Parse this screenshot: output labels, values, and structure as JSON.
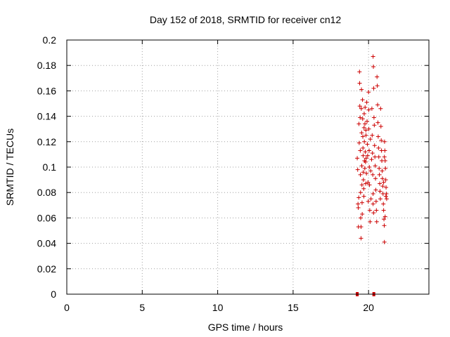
{
  "chart_data": {
    "type": "scatter",
    "title": "Day 152 of 2018, SRMTID for receiver cn12",
    "xlabel": "GPS time / hours",
    "ylabel": "SRMTID / TECUs",
    "xlim": [
      0,
      24
    ],
    "ylim": [
      0,
      0.2
    ],
    "xticks": [
      0,
      5,
      10,
      15,
      20
    ],
    "xtick_labels": [
      "0",
      "5",
      "10",
      "15",
      "20"
    ],
    "yticks": [
      0,
      0.02,
      0.04,
      0.06,
      0.08,
      0.1,
      0.12,
      0.14,
      0.16,
      0.18,
      0.2
    ],
    "ytick_labels": [
      "0",
      "0.02",
      "0.04",
      "0.06",
      "0.08",
      "0.1",
      "0.12",
      "0.14",
      "0.16",
      "0.18",
      "0.2"
    ],
    "grid": true,
    "marker": "+",
    "color": "#cc0000",
    "series": [
      {
        "name": "SRMTID",
        "points": [
          [
            19.25,
            0.107
          ],
          [
            19.28,
            0.098
          ],
          [
            19.3,
            0.071
          ],
          [
            19.32,
            0.068
          ],
          [
            19.33,
            0.053
          ],
          [
            19.35,
            0.076
          ],
          [
            19.36,
            0.134
          ],
          [
            19.38,
            0.119
          ],
          [
            19.4,
            0.175
          ],
          [
            19.41,
            0.166
          ],
          [
            19.42,
            0.148
          ],
          [
            19.44,
            0.139
          ],
          [
            19.45,
            0.113
          ],
          [
            19.46,
            0.094
          ],
          [
            19.47,
            0.08
          ],
          [
            19.48,
            0.06
          ],
          [
            19.5,
            0.053
          ],
          [
            19.5,
            0.044
          ],
          [
            19.52,
            0.146
          ],
          [
            19.53,
            0.161
          ],
          [
            19.54,
            0.127
          ],
          [
            19.55,
            0.101
          ],
          [
            19.56,
            0.086
          ],
          [
            19.57,
            0.072
          ],
          [
            19.58,
            0.063
          ],
          [
            19.6,
            0.153
          ],
          [
            19.61,
            0.138
          ],
          [
            19.62,
            0.124
          ],
          [
            19.63,
            0.115
          ],
          [
            19.64,
            0.109
          ],
          [
            19.65,
            0.096
          ],
          [
            19.66,
            0.09
          ],
          [
            19.68,
            0.083
          ],
          [
            19.69,
            0.077
          ],
          [
            19.7,
            0.131
          ],
          [
            19.71,
            0.142
          ],
          [
            19.72,
            0.12
          ],
          [
            19.73,
            0.105
          ],
          [
            19.75,
            0.099
          ],
          [
            19.76,
            0.134
          ],
          [
            19.77,
            0.147
          ],
          [
            19.78,
            0.112
          ],
          [
            19.8,
            0.104
          ],
          [
            19.81,
            0.087
          ],
          [
            19.82,
            0.129
          ],
          [
            19.83,
            0.125
          ],
          [
            19.84,
            0.107
          ],
          [
            19.86,
            0.095
          ],
          [
            19.88,
            0.151
          ],
          [
            19.9,
            0.136
          ],
          [
            19.92,
            0.118
          ],
          [
            19.94,
            0.109
          ],
          [
            19.96,
            0.088
          ],
          [
            19.98,
            0.073
          ],
          [
            20.0,
            0.159
          ],
          [
            20.01,
            0.145
          ],
          [
            20.02,
            0.13
          ],
          [
            20.04,
            0.113
          ],
          [
            20.05,
            0.1
          ],
          [
            20.06,
            0.086
          ],
          [
            20.08,
            0.066
          ],
          [
            20.1,
            0.057
          ],
          [
            20.12,
            0.122
          ],
          [
            20.14,
            0.097
          ],
          [
            20.16,
            0.075
          ],
          [
            20.2,
            0.106
          ],
          [
            20.22,
            0.146
          ],
          [
            20.24,
            0.125
          ],
          [
            20.26,
            0.111
          ],
          [
            20.28,
            0.094
          ],
          [
            20.3,
            0.079
          ],
          [
            20.3,
            0.187
          ],
          [
            20.32,
            0.179
          ],
          [
            20.34,
            0.162
          ],
          [
            20.36,
            0.139
          ],
          [
            20.38,
            0.133
          ],
          [
            20.4,
            0.117
          ],
          [
            20.42,
            0.108
          ],
          [
            20.44,
            0.101
          ],
          [
            20.46,
            0.091
          ],
          [
            20.48,
            0.082
          ],
          [
            20.5,
            0.073
          ],
          [
            20.52,
            0.066
          ],
          [
            20.54,
            0.057
          ],
          [
            20.3,
            0.071
          ],
          [
            20.33,
            0.064
          ],
          [
            20.56,
            0.171
          ],
          [
            20.58,
            0.164
          ],
          [
            20.6,
            0.149
          ],
          [
            20.62,
            0.135
          ],
          [
            20.64,
            0.124
          ],
          [
            20.66,
            0.115
          ],
          [
            20.68,
            0.108
          ],
          [
            20.7,
            0.099
          ],
          [
            20.72,
            0.094
          ],
          [
            20.74,
            0.087
          ],
          [
            20.76,
            0.081
          ],
          [
            20.78,
            0.075
          ],
          [
            20.8,
            0.146
          ],
          [
            20.82,
            0.132
          ],
          [
            20.84,
            0.121
          ],
          [
            20.86,
            0.113
          ],
          [
            20.88,
            0.105
          ],
          [
            20.9,
            0.097
          ],
          [
            20.92,
            0.091
          ],
          [
            20.94,
            0.085
          ],
          [
            20.96,
            0.079
          ],
          [
            20.98,
            0.071
          ],
          [
            21.0,
            0.066
          ],
          [
            21.02,
            0.059
          ],
          [
            21.04,
            0.054
          ],
          [
            21.06,
            0.12
          ],
          [
            21.08,
            0.113
          ],
          [
            21.1,
            0.105
          ],
          [
            21.12,
            0.099
          ],
          [
            21.14,
            0.09
          ],
          [
            21.16,
            0.084
          ],
          [
            21.18,
            0.079
          ],
          [
            21.2,
            0.075
          ],
          [
            21.05,
            0.041
          ],
          [
            21.1,
            0.061
          ],
          [
            21.15,
            0.077
          ],
          [
            21.05,
            0.108
          ],
          [
            21.0,
            0.088
          ]
        ],
        "zero_markers_x": [
          19.25,
          20.35
        ]
      }
    ]
  }
}
